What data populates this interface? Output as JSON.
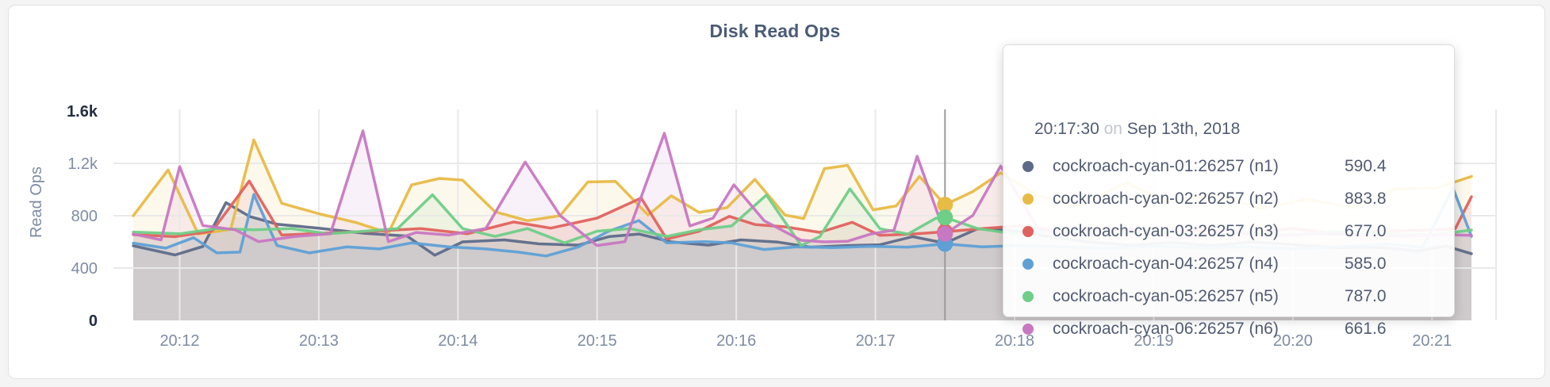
{
  "page": {
    "background": "#f4f4f4",
    "card_background": "#ffffff"
  },
  "tooltip": {
    "time": "20:17:30",
    "conjunction": "on",
    "date": "Sep 13th, 2018",
    "rows": [
      {
        "series": "cockroach-cyan-01:26257 (n1)",
        "value": "590.4",
        "color": "#5d6b89"
      },
      {
        "series": "cockroach-cyan-02:26257 (n2)",
        "value": "883.8",
        "color": "#e8bb44"
      },
      {
        "series": "cockroach-cyan-03:26257 (n3)",
        "value": "677.0",
        "color": "#e0625e"
      },
      {
        "series": "cockroach-cyan-04:26257 (n4)",
        "value": "585.0",
        "color": "#5ea0d6"
      },
      {
        "series": "cockroach-cyan-05:26257 (n5)",
        "value": "787.0",
        "color": "#6fce87"
      },
      {
        "series": "cockroach-cyan-06:26257 (n6)",
        "value": "661.6",
        "color": "#c877c2"
      }
    ]
  },
  "chart_data": {
    "type": "area",
    "title": "Disk Read Ops",
    "ylabel": "Read Ops",
    "grid": true,
    "legend_position": "tooltip-only",
    "time_axis_start_label": "20:11:40",
    "x_unit": "seconds since 20:11:40",
    "x_domain": [
      0,
      577
    ],
    "y_domain": [
      0,
      1600
    ],
    "x_ticks": [
      {
        "t": 20,
        "label": "20:12"
      },
      {
        "t": 80,
        "label": "20:13"
      },
      {
        "t": 140,
        "label": "20:14"
      },
      {
        "t": 200,
        "label": "20:15"
      },
      {
        "t": 260,
        "label": "20:16"
      },
      {
        "t": 320,
        "label": "20:17"
      },
      {
        "t": 380,
        "label": "20:18"
      },
      {
        "t": 440,
        "label": "20:19"
      },
      {
        "t": 500,
        "label": "20:20"
      },
      {
        "t": 560,
        "label": "20:21"
      }
    ],
    "y_ticks": [
      {
        "value": 0,
        "label": "0",
        "emphasis": true
      },
      {
        "value": 400,
        "label": "400",
        "emphasis": false
      },
      {
        "value": 800,
        "label": "800",
        "emphasis": false
      },
      {
        "value": 1200,
        "label": "1.2k",
        "emphasis": false
      },
      {
        "value": 1600,
        "label": "1.6k",
        "emphasis": true
      }
    ],
    "hover": {
      "t": 350,
      "time": "20:17:30",
      "date": "Sep 13th, 2018",
      "line_color": "#9b9b9b"
    },
    "grid_color": "#e9e9e9",
    "axis_text_color": "#7e8ca3",
    "axis_text_emphasis_color": "#242d40",
    "series": [
      {
        "name": "cockroach-cyan-01:26257 (n1)",
        "node": "n1",
        "color": "#5d6b89",
        "hover_value": 590.4,
        "points": [
          [
            0,
            570
          ],
          [
            18,
            500
          ],
          [
            30,
            565
          ],
          [
            40,
            900
          ],
          [
            50,
            795
          ],
          [
            62,
            735
          ],
          [
            80,
            705
          ],
          [
            100,
            665
          ],
          [
            118,
            645
          ],
          [
            130,
            498
          ],
          [
            142,
            600
          ],
          [
            160,
            615
          ],
          [
            175,
            585
          ],
          [
            192,
            575
          ],
          [
            205,
            640
          ],
          [
            218,
            660
          ],
          [
            232,
            600
          ],
          [
            248,
            575
          ],
          [
            262,
            615
          ],
          [
            278,
            598
          ],
          [
            292,
            560
          ],
          [
            308,
            572
          ],
          [
            322,
            578
          ],
          [
            336,
            640
          ],
          [
            350,
            590.4
          ],
          [
            364,
            700
          ],
          [
            378,
            688
          ],
          [
            395,
            640
          ],
          [
            412,
            600
          ],
          [
            430,
            575
          ],
          [
            448,
            595
          ],
          [
            465,
            570
          ],
          [
            482,
            600
          ],
          [
            500,
            580
          ],
          [
            518,
            555
          ],
          [
            536,
            560
          ],
          [
            554,
            530
          ],
          [
            566,
            568
          ],
          [
            577,
            510
          ]
        ]
      },
      {
        "name": "cockroach-cyan-02:26257 (n2)",
        "node": "n2",
        "color": "#e8bb44",
        "hover_value": 883.8,
        "points": [
          [
            0,
            800
          ],
          [
            15,
            1150
          ],
          [
            28,
            660
          ],
          [
            42,
            695
          ],
          [
            52,
            1380
          ],
          [
            64,
            895
          ],
          [
            80,
            815
          ],
          [
            96,
            748
          ],
          [
            110,
            668
          ],
          [
            120,
            1035
          ],
          [
            132,
            1085
          ],
          [
            142,
            1072
          ],
          [
            156,
            830
          ],
          [
            170,
            762
          ],
          [
            184,
            800
          ],
          [
            196,
            1058
          ],
          [
            208,
            1062
          ],
          [
            222,
            805
          ],
          [
            232,
            952
          ],
          [
            244,
            825
          ],
          [
            256,
            862
          ],
          [
            268,
            1078
          ],
          [
            281,
            805
          ],
          [
            289,
            778
          ],
          [
            298,
            1160
          ],
          [
            308,
            1185
          ],
          [
            319,
            845
          ],
          [
            329,
            875
          ],
          [
            339,
            1100
          ],
          [
            350,
            883.8
          ],
          [
            362,
            985
          ],
          [
            374,
            1128
          ],
          [
            390,
            955
          ],
          [
            408,
            875
          ],
          [
            428,
            1052
          ],
          [
            446,
            905
          ],
          [
            466,
            962
          ],
          [
            486,
            855
          ],
          [
            506,
            925
          ],
          [
            526,
            865
          ],
          [
            544,
            1005
          ],
          [
            562,
            1012
          ],
          [
            577,
            1100
          ]
        ]
      },
      {
        "name": "cockroach-cyan-03:26257 (n3)",
        "node": "n3",
        "color": "#e0625e",
        "hover_value": 677.0,
        "points": [
          [
            0,
            655
          ],
          [
            18,
            640
          ],
          [
            34,
            682
          ],
          [
            50,
            1065
          ],
          [
            64,
            652
          ],
          [
            84,
            668
          ],
          [
            104,
            682
          ],
          [
            124,
            702
          ],
          [
            144,
            662
          ],
          [
            164,
            752
          ],
          [
            180,
            705
          ],
          [
            200,
            782
          ],
          [
            219,
            935
          ],
          [
            230,
            622
          ],
          [
            244,
            682
          ],
          [
            257,
            795
          ],
          [
            268,
            733
          ],
          [
            281,
            715
          ],
          [
            296,
            673
          ],
          [
            310,
            750
          ],
          [
            322,
            650
          ],
          [
            336,
            660
          ],
          [
            350,
            677
          ],
          [
            366,
            702
          ],
          [
            382,
            722
          ],
          [
            400,
            682
          ],
          [
            420,
            702
          ],
          [
            440,
            662
          ],
          [
            460,
            692
          ],
          [
            480,
            672
          ],
          [
            500,
            702
          ],
          [
            520,
            662
          ],
          [
            540,
            682
          ],
          [
            560,
            692
          ],
          [
            570,
            700
          ],
          [
            577,
            945
          ]
        ]
      },
      {
        "name": "cockroach-cyan-04:26257 (n4)",
        "node": "n4",
        "color": "#5ea0d6",
        "hover_value": 585.0,
        "points": [
          [
            0,
            590
          ],
          [
            14,
            552
          ],
          [
            26,
            632
          ],
          [
            36,
            516
          ],
          [
            46,
            522
          ],
          [
            52,
            963
          ],
          [
            62,
            572
          ],
          [
            76,
            516
          ],
          [
            92,
            562
          ],
          [
            106,
            546
          ],
          [
            120,
            592
          ],
          [
            136,
            562
          ],
          [
            152,
            546
          ],
          [
            166,
            522
          ],
          [
            178,
            492
          ],
          [
            192,
            562
          ],
          [
            205,
            682
          ],
          [
            218,
            763
          ],
          [
            230,
            592
          ],
          [
            246,
            602
          ],
          [
            258,
            592
          ],
          [
            272,
            542
          ],
          [
            286,
            562
          ],
          [
            302,
            556
          ],
          [
            318,
            566
          ],
          [
            334,
            560
          ],
          [
            350,
            585
          ],
          [
            366,
            562
          ],
          [
            382,
            572
          ],
          [
            400,
            562
          ],
          [
            420,
            552
          ],
          [
            440,
            566
          ],
          [
            460,
            556
          ],
          [
            480,
            562
          ],
          [
            500,
            546
          ],
          [
            520,
            562
          ],
          [
            540,
            582
          ],
          [
            556,
            560
          ],
          [
            569,
            1012
          ],
          [
            577,
            642
          ]
        ]
      },
      {
        "name": "cockroach-cyan-05:26257 (n5)",
        "node": "n5",
        "color": "#6fce87",
        "hover_value": 787.0,
        "points": [
          [
            0,
            675
          ],
          [
            20,
            662
          ],
          [
            36,
            702
          ],
          [
            52,
            692
          ],
          [
            68,
            702
          ],
          [
            84,
            662
          ],
          [
            100,
            682
          ],
          [
            114,
            702
          ],
          [
            129,
            960
          ],
          [
            142,
            702
          ],
          [
            156,
            642
          ],
          [
            170,
            702
          ],
          [
            186,
            592
          ],
          [
            200,
            682
          ],
          [
            214,
            702
          ],
          [
            230,
            642
          ],
          [
            244,
            692
          ],
          [
            258,
            722
          ],
          [
            273,
            958
          ],
          [
            288,
            572
          ],
          [
            296,
            640
          ],
          [
            309,
            1005
          ],
          [
            322,
            700
          ],
          [
            334,
            660
          ],
          [
            346,
            780
          ],
          [
            350,
            787
          ],
          [
            364,
            702
          ],
          [
            380,
            662
          ],
          [
            400,
            692
          ],
          [
            420,
            662
          ],
          [
            440,
            682
          ],
          [
            460,
            652
          ],
          [
            480,
            672
          ],
          [
            500,
            652
          ],
          [
            520,
            682
          ],
          [
            540,
            662
          ],
          [
            560,
            652
          ],
          [
            577,
            690
          ]
        ]
      },
      {
        "name": "cockroach-cyan-06:26257 (n6)",
        "node": "n6",
        "color": "#c877c2",
        "hover_value": 661.6,
        "points": [
          [
            0,
            660
          ],
          [
            12,
            615
          ],
          [
            20,
            1175
          ],
          [
            30,
            725
          ],
          [
            44,
            692
          ],
          [
            54,
            602
          ],
          [
            70,
            642
          ],
          [
            85,
            662
          ],
          [
            99,
            1448
          ],
          [
            110,
            602
          ],
          [
            122,
            672
          ],
          [
            136,
            652
          ],
          [
            152,
            702
          ],
          [
            169,
            1210
          ],
          [
            184,
            802
          ],
          [
            200,
            572
          ],
          [
            212,
            602
          ],
          [
            229,
            1430
          ],
          [
            240,
            722
          ],
          [
            250,
            782
          ],
          [
            259,
            1036
          ],
          [
            272,
            762
          ],
          [
            288,
            612
          ],
          [
            298,
            600
          ],
          [
            308,
            605
          ],
          [
            318,
            660
          ],
          [
            328,
            690
          ],
          [
            338,
            1254
          ],
          [
            350,
            661.6
          ],
          [
            362,
            802
          ],
          [
            374,
            1180
          ],
          [
            390,
            702
          ],
          [
            410,
            642
          ],
          [
            430,
            702
          ],
          [
            450,
            622
          ],
          [
            470,
            682
          ],
          [
            490,
            642
          ],
          [
            510,
            662
          ],
          [
            530,
            652
          ],
          [
            550,
            642
          ],
          [
            565,
            655
          ],
          [
            577,
            650
          ]
        ]
      }
    ]
  }
}
